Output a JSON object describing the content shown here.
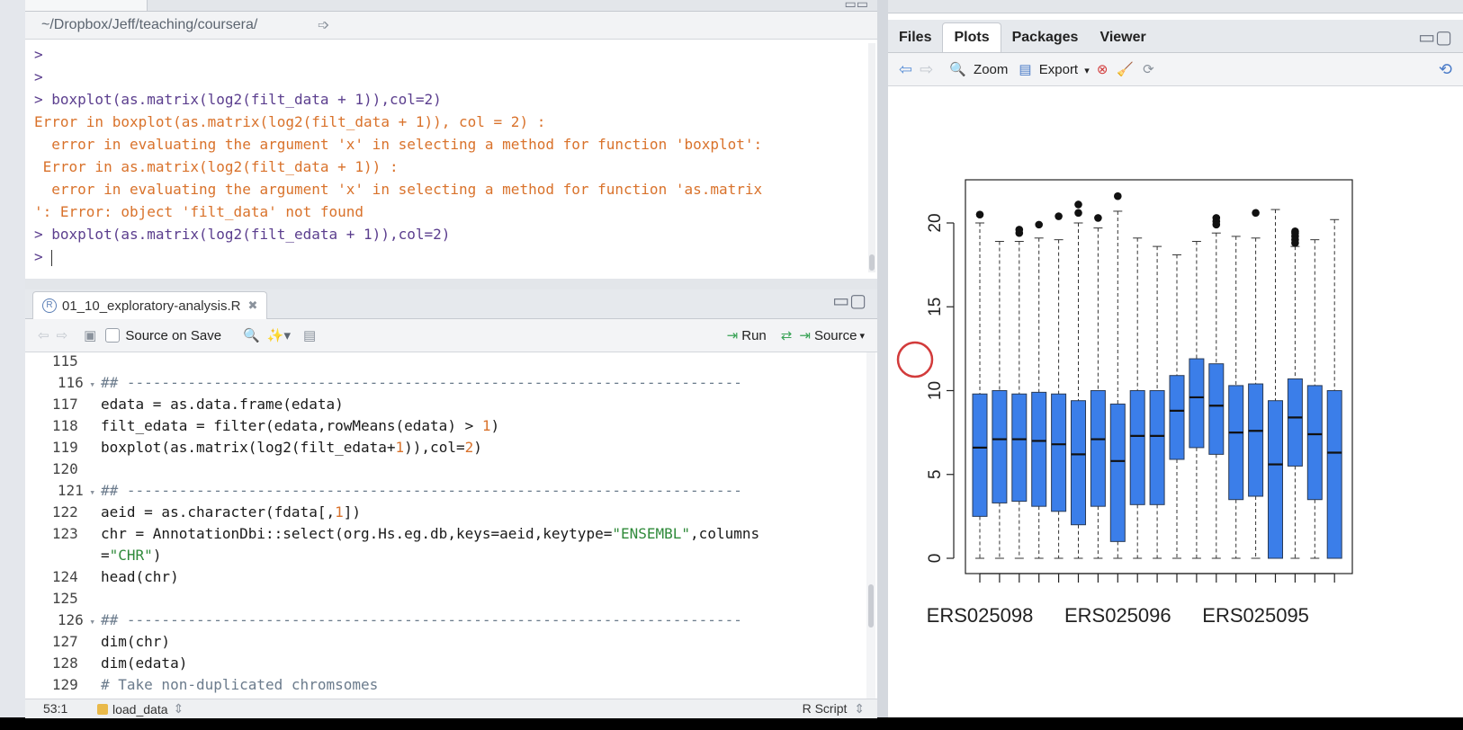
{
  "console": {
    "path": "~/Dropbox/Jeff/teaching/coursera/",
    "lines": [
      {
        "type": "prompt",
        "text": ">"
      },
      {
        "type": "prompt",
        "text": ">"
      },
      {
        "type": "prompt",
        "text": "> boxplot(as.matrix(log2(filt_data + 1)),col=2)"
      },
      {
        "type": "err",
        "text": "Error in boxplot(as.matrix(log2(filt_data + 1)), col = 2) :"
      },
      {
        "type": "err",
        "text": "  error in evaluating the argument 'x' in selecting a method for function 'boxplot':"
      },
      {
        "type": "err",
        "text": " Error in as.matrix(log2(filt_data + 1)) :"
      },
      {
        "type": "err",
        "text": "  error in evaluating the argument 'x' in selecting a method for function 'as.matrix"
      },
      {
        "type": "err",
        "text": "': Error: object 'filt_data' not found"
      },
      {
        "type": "prompt",
        "text": "> boxplot(as.matrix(log2(filt_edata + 1)),col=2)"
      },
      {
        "type": "prompt",
        "text": "> "
      }
    ]
  },
  "source": {
    "file_tab": "01_10_exploratory-analysis.R",
    "source_on_save": "Source on Save",
    "run_label": "Run",
    "source_label": "Source",
    "status": {
      "position": "53:1",
      "section": "load_data",
      "filetype": "R Script"
    },
    "lines": [
      {
        "n": "115",
        "parts": []
      },
      {
        "n": "116",
        "fold": true,
        "parts": [
          {
            "c": "cm",
            "t": "## -----------------------------------------------------------------------"
          }
        ]
      },
      {
        "n": "117",
        "parts": [
          {
            "t": "edata = as.data.frame(edata)"
          }
        ]
      },
      {
        "n": "118",
        "parts": [
          {
            "t": "filt_edata = filter(edata,rowMeans(edata) > "
          },
          {
            "c": "num",
            "t": "1"
          },
          {
            "t": ")"
          }
        ]
      },
      {
        "n": "119",
        "parts": [
          {
            "t": "boxplot(as.matrix(log2(filt_edata+"
          },
          {
            "c": "num",
            "t": "1"
          },
          {
            "t": ")),col="
          },
          {
            "c": "num",
            "t": "2"
          },
          {
            "t": ")"
          }
        ]
      },
      {
        "n": "120",
        "parts": []
      },
      {
        "n": "121",
        "fold": true,
        "parts": [
          {
            "c": "cm",
            "t": "## -----------------------------------------------------------------------"
          }
        ]
      },
      {
        "n": "122",
        "parts": [
          {
            "t": "aeid = as.character(fdata[,"
          },
          {
            "c": "num",
            "t": "1"
          },
          {
            "t": "])"
          }
        ]
      },
      {
        "n": "123",
        "parts": [
          {
            "t": "chr = AnnotationDbi::select(org.Hs.eg.db,keys=aeid,keytype="
          },
          {
            "c": "str",
            "t": "\"ENSEMBL\""
          },
          {
            "t": ",columns"
          }
        ]
      },
      {
        "n": "",
        "parts": [
          {
            "t": "="
          },
          {
            "c": "str",
            "t": "\"CHR\""
          },
          {
            "t": ")"
          }
        ]
      },
      {
        "n": "124",
        "parts": [
          {
            "t": "head(chr)"
          }
        ]
      },
      {
        "n": "125",
        "parts": []
      },
      {
        "n": "126",
        "fold": true,
        "parts": [
          {
            "c": "cm",
            "t": "## -----------------------------------------------------------------------"
          }
        ]
      },
      {
        "n": "127",
        "parts": [
          {
            "t": "dim(chr)"
          }
        ]
      },
      {
        "n": "128",
        "parts": [
          {
            "t": "dim(edata)"
          }
        ]
      },
      {
        "n": "129",
        "parts": [
          {
            "c": "cm",
            "t": "# Take non-duplicated chromsomes"
          }
        ]
      }
    ]
  },
  "right": {
    "tabs": [
      "Files",
      "Plots",
      "Packages",
      "Viewer"
    ],
    "active_tab": "Plots",
    "zoom_label": "Zoom",
    "export_label": "Export"
  },
  "chart_data": {
    "type": "boxplot",
    "title": "",
    "ylim": [
      0,
      22
    ],
    "yticks": [
      0,
      5,
      10,
      15,
      20
    ],
    "x_tick_labels": [
      "ERS025098",
      "ERS025096",
      "ERS025095"
    ],
    "color": "#3b7ee9",
    "boxes": [
      {
        "q1": 2.5,
        "median": 6.6,
        "q3": 9.8,
        "whisker_low": 0,
        "whisker_high": 20.0,
        "outliers": [
          20.5
        ]
      },
      {
        "q1": 3.3,
        "median": 7.1,
        "q3": 10.0,
        "whisker_low": 0,
        "whisker_high": 18.9,
        "outliers": []
      },
      {
        "q1": 3.4,
        "median": 7.1,
        "q3": 9.8,
        "whisker_low": 0,
        "whisker_high": 18.9,
        "outliers": [
          19.4,
          19.6
        ]
      },
      {
        "q1": 3.1,
        "median": 7.0,
        "q3": 9.9,
        "whisker_low": 0,
        "whisker_high": 19.1,
        "outliers": [
          19.9
        ]
      },
      {
        "q1": 2.8,
        "median": 6.8,
        "q3": 9.8,
        "whisker_low": 0,
        "whisker_high": 19.0,
        "outliers": [
          20.4
        ]
      },
      {
        "q1": 2.0,
        "median": 6.2,
        "q3": 9.4,
        "whisker_low": 0,
        "whisker_high": 20.0,
        "outliers": [
          20.6,
          21.1
        ]
      },
      {
        "q1": 3.1,
        "median": 7.1,
        "q3": 10.0,
        "whisker_low": 0,
        "whisker_high": 19.7,
        "outliers": [
          20.3
        ]
      },
      {
        "q1": 1.0,
        "median": 5.8,
        "q3": 9.2,
        "whisker_low": 0,
        "whisker_high": 20.7,
        "outliers": [
          21.6
        ]
      },
      {
        "q1": 3.2,
        "median": 7.3,
        "q3": 10.0,
        "whisker_low": 0,
        "whisker_high": 19.1,
        "outliers": []
      },
      {
        "q1": 3.2,
        "median": 7.3,
        "q3": 10.0,
        "whisker_low": 0,
        "whisker_high": 18.6,
        "outliers": []
      },
      {
        "q1": 5.9,
        "median": 8.8,
        "q3": 10.9,
        "whisker_low": 0,
        "whisker_high": 18.1,
        "outliers": []
      },
      {
        "q1": 6.6,
        "median": 9.6,
        "q3": 11.9,
        "whisker_low": 0,
        "whisker_high": 18.9,
        "outliers": []
      },
      {
        "q1": 6.2,
        "median": 9.1,
        "q3": 11.6,
        "whisker_low": 0,
        "whisker_high": 19.4,
        "outliers": [
          19.9,
          20.1,
          20.3
        ]
      },
      {
        "q1": 3.5,
        "median": 7.5,
        "q3": 10.3,
        "whisker_low": 0,
        "whisker_high": 19.2,
        "outliers": []
      },
      {
        "q1": 3.7,
        "median": 7.6,
        "q3": 10.4,
        "whisker_low": 0,
        "whisker_high": 19.1,
        "outliers": [
          20.6
        ]
      },
      {
        "q1": 0,
        "median": 5.6,
        "q3": 9.4,
        "whisker_low": 0,
        "whisker_high": 20.8,
        "outliers": []
      },
      {
        "q1": 5.5,
        "median": 8.4,
        "q3": 10.7,
        "whisker_low": 0,
        "whisker_high": 18.6,
        "outliers": [
          18.8,
          19.0,
          19.2,
          19.4,
          19.5
        ]
      },
      {
        "q1": 3.5,
        "median": 7.4,
        "q3": 10.3,
        "whisker_low": 0,
        "whisker_high": 19.0,
        "outliers": []
      },
      {
        "q1": 0,
        "median": 6.3,
        "q3": 10.0,
        "whisker_low": 0,
        "whisker_high": 20.2,
        "outliers": []
      }
    ]
  }
}
